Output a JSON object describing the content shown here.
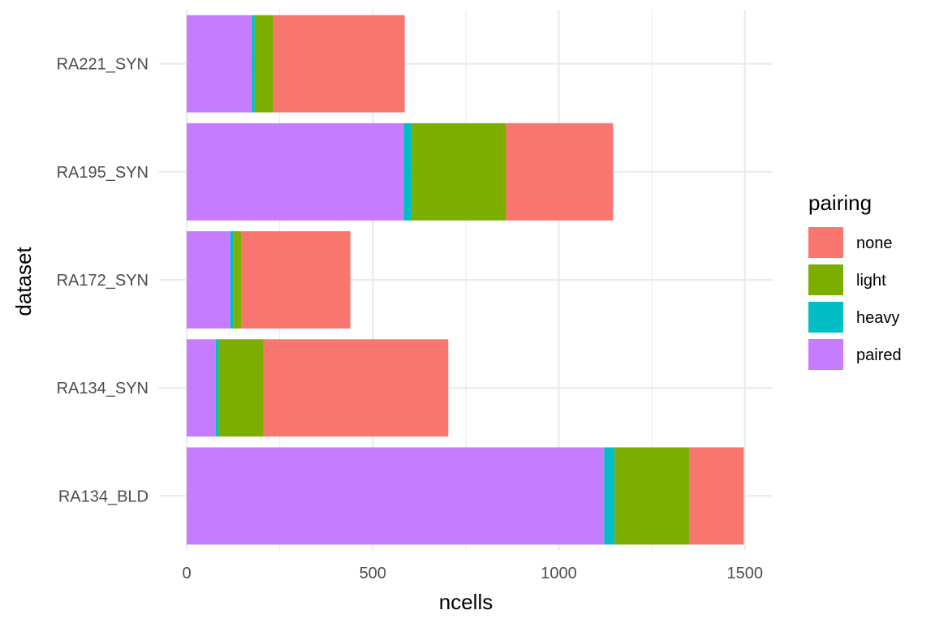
{
  "chart_data": {
    "type": "bar",
    "orientation": "horizontal",
    "stacked": true,
    "categories": [
      "RA134_BLD",
      "RA134_SYN",
      "RA172_SYN",
      "RA195_SYN",
      "RA221_SYN"
    ],
    "series": [
      {
        "name": "paired",
        "color": "#C77CFF",
        "values": [
          1122,
          78,
          117,
          583,
          175
        ]
      },
      {
        "name": "heavy",
        "color": "#00BFC4",
        "values": [
          28,
          8,
          8,
          22,
          8
        ]
      },
      {
        "name": "light",
        "color": "#7CAE00",
        "values": [
          200,
          120,
          22,
          253,
          50
        ]
      },
      {
        "name": "none",
        "color": "#F8766D",
        "values": [
          147,
          497,
          293,
          288,
          353
        ]
      }
    ],
    "stack_order": [
      "paired",
      "heavy",
      "light",
      "none"
    ],
    "xlabel": "ncells",
    "ylabel": "dataset",
    "xlim": [
      0,
      1575
    ],
    "xticks": [
      0,
      500,
      1000,
      1500
    ],
    "grid": true,
    "legend": {
      "title": "pairing",
      "placement": "right",
      "entries": [
        {
          "label": "none",
          "color": "#F8766D"
        },
        {
          "label": "light",
          "color": "#7CAE00"
        },
        {
          "label": "heavy",
          "color": "#00BFC4"
        },
        {
          "label": "paired",
          "color": "#C77CFF"
        }
      ]
    }
  }
}
